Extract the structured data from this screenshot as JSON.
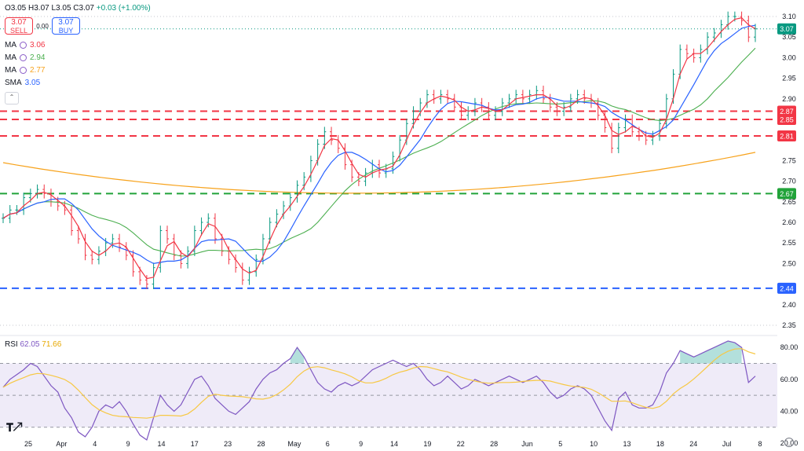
{
  "header": {
    "ohlc": "O3.05 H3.07 L3.05 C3.07",
    "change": "+0.03 (+1.00%)"
  },
  "trade": {
    "sell_price": "3.07",
    "sell_label": "SELL",
    "spread": "0.00",
    "buy_price": "3.07",
    "buy_label": "BUY"
  },
  "indicators": [
    {
      "name": "MA",
      "value": "3.06",
      "color": "#f23645"
    },
    {
      "name": "MA",
      "value": "2.94",
      "color": "#4caf50"
    },
    {
      "name": "MA",
      "value": "2.77",
      "color": "#f7a21b"
    },
    {
      "name": "SMA",
      "value": "3.05",
      "color": "#2962ff"
    }
  ],
  "rsi": {
    "label": "RSI",
    "value": "62.05",
    "ma_value": "71.66",
    "color": "#7e57c2",
    "ma_color": "#f7c844"
  },
  "icons": {
    "logo": "tradingview-logo",
    "settings": "gear-icon",
    "visibility": "eye-icon",
    "collapse": "chevron-up-icon"
  },
  "chart_data": {
    "type": "candlestick",
    "title": "",
    "y_ticks": [
      "3.10",
      "3.05",
      "3.00",
      "2.95",
      "2.90",
      "2.85",
      "2.80",
      "2.75",
      "2.70",
      "2.65",
      "2.60",
      "2.55",
      "2.50",
      "2.45",
      "2.40",
      "2.35"
    ],
    "ylim": [
      2.35,
      3.1
    ],
    "x_tick_labels": [
      "25",
      "Apr",
      "4",
      "9",
      "14",
      "17",
      "23",
      "28",
      "May",
      "6",
      "9",
      "14",
      "19",
      "22",
      "28",
      "Jun",
      "5",
      "10",
      "13",
      "18",
      "24",
      "Jul",
      "8"
    ],
    "price_close": [
      2.61,
      2.63,
      2.63,
      2.66,
      2.67,
      2.68,
      2.67,
      2.65,
      2.64,
      2.63,
      2.58,
      2.56,
      2.52,
      2.51,
      2.53,
      2.55,
      2.56,
      2.54,
      2.52,
      2.48,
      2.46,
      2.45,
      2.49,
      2.58,
      2.56,
      2.52,
      2.5,
      2.53,
      2.58,
      2.6,
      2.61,
      2.56,
      2.53,
      2.51,
      2.49,
      2.46,
      2.48,
      2.51,
      2.56,
      2.6,
      2.62,
      2.64,
      2.66,
      2.69,
      2.71,
      2.75,
      2.79,
      2.82,
      2.8,
      2.78,
      2.74,
      2.71,
      2.7,
      2.72,
      2.74,
      2.72,
      2.73,
      2.76,
      2.8,
      2.84,
      2.87,
      2.89,
      2.91,
      2.9,
      2.91,
      2.9,
      2.88,
      2.86,
      2.87,
      2.89,
      2.88,
      2.86,
      2.87,
      2.89,
      2.9,
      2.91,
      2.9,
      2.91,
      2.92,
      2.9,
      2.88,
      2.87,
      2.88,
      2.9,
      2.91,
      2.9,
      2.89,
      2.86,
      2.83,
      2.78,
      2.83,
      2.85,
      2.82,
      2.81,
      2.8,
      2.81,
      2.84,
      2.9,
      2.96,
      3.02,
      3.01,
      3.0,
      3.02,
      3.05,
      3.06,
      3.08,
      3.1,
      3.1,
      3.09,
      3.05,
      3.07
    ],
    "horizontal_levels": [
      {
        "value": 2.87,
        "label": "2.87",
        "color": "#f23645"
      },
      {
        "value": 2.85,
        "label": "2.85",
        "color": "#f23645"
      },
      {
        "value": 2.81,
        "label": "2.81",
        "color": "#f23645"
      },
      {
        "value": 2.67,
        "label": "2.67",
        "color": "#22a33a"
      },
      {
        "value": 2.44,
        "label": "2.44",
        "color": "#2962ff"
      }
    ],
    "price_marker": {
      "value": 3.07,
      "label": "3.07",
      "color": "#089981"
    },
    "ma_long": {
      "start": 2.745,
      "min": 2.64,
      "end": 2.77,
      "color": "#f7a21b"
    },
    "rsi": {
      "y_ticks": [
        "80.00",
        "60.00",
        "40.00",
        "20.00"
      ],
      "ylim": [
        20,
        85
      ],
      "overbought": 70,
      "oversold": 30,
      "mid": 50,
      "values": [
        55,
        60,
        63,
        66,
        70,
        68,
        62,
        56,
        52,
        42,
        36,
        27,
        24,
        30,
        40,
        44,
        42,
        46,
        40,
        32,
        25,
        22,
        36,
        50,
        44,
        40,
        44,
        52,
        60,
        62,
        56,
        48,
        44,
        40,
        38,
        42,
        46,
        54,
        60,
        64,
        66,
        70,
        73,
        80,
        74,
        66,
        58,
        54,
        52,
        56,
        58,
        56,
        58,
        62,
        66,
        68,
        70,
        72,
        70,
        68,
        70,
        66,
        60,
        56,
        58,
        62,
        58,
        54,
        56,
        60,
        58,
        56,
        58,
        60,
        62,
        60,
        58,
        60,
        62,
        58,
        52,
        48,
        50,
        54,
        56,
        54,
        50,
        42,
        34,
        28,
        48,
        52,
        44,
        42,
        42,
        44,
        52,
        64,
        70,
        78,
        76,
        74,
        76,
        78,
        80,
        82,
        84,
        83,
        80,
        58,
        62
      ]
    }
  }
}
